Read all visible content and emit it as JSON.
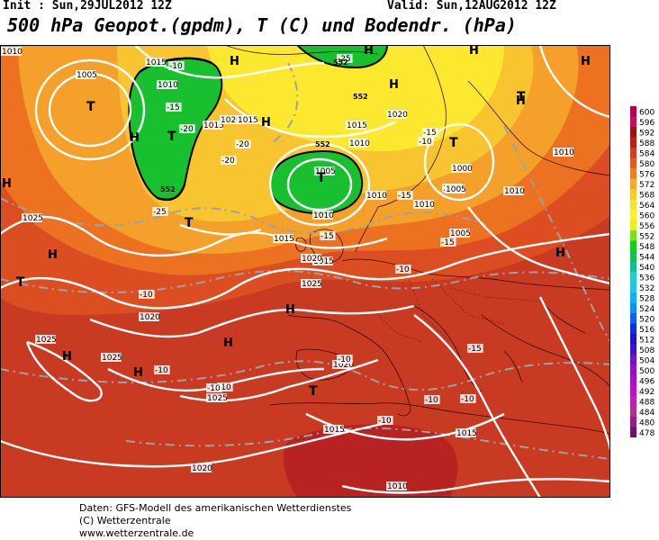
{
  "header": {
    "init": "Init : Sun,29JUL2012 12Z",
    "valid": "Valid: Sun,12AUG2012 12Z",
    "title": "500 hPa Geopot.(gpdm), T (C) und Bodendr. (hPa)"
  },
  "legend": {
    "levels": [
      {
        "value": "600",
        "color": "#b40050"
      },
      {
        "value": "596",
        "color": "#c8105a"
      },
      {
        "value": "592",
        "color": "#a01010"
      },
      {
        "value": "588",
        "color": "#bb1f1a"
      },
      {
        "value": "584",
        "color": "#d23c22"
      },
      {
        "value": "580",
        "color": "#e05a20"
      },
      {
        "value": "576",
        "color": "#ee8020"
      },
      {
        "value": "572",
        "color": "#f6a828"
      },
      {
        "value": "568",
        "color": "#f8c830"
      },
      {
        "value": "564",
        "color": "#f8e038"
      },
      {
        "value": "560",
        "color": "#fff030"
      },
      {
        "value": "556",
        "color": "#e8f020"
      },
      {
        "value": "552",
        "color": "#78e020"
      },
      {
        "value": "548",
        "color": "#10d010"
      },
      {
        "value": "544",
        "color": "#10c050"
      },
      {
        "value": "540",
        "color": "#10c090"
      },
      {
        "value": "536",
        "color": "#20d0c8"
      },
      {
        "value": "532",
        "color": "#20c8e8"
      },
      {
        "value": "528",
        "color": "#10b0f0"
      },
      {
        "value": "524",
        "color": "#1090f0"
      },
      {
        "value": "520",
        "color": "#1060f0"
      },
      {
        "value": "516",
        "color": "#1030e0"
      },
      {
        "value": "512",
        "color": "#2010d0"
      },
      {
        "value": "508",
        "color": "#4010d0"
      },
      {
        "value": "504",
        "color": "#7010d0"
      },
      {
        "value": "500",
        "color": "#9010d0"
      },
      {
        "value": "496",
        "color": "#a810c8"
      },
      {
        "value": "492",
        "color": "#c010c0"
      },
      {
        "value": "488",
        "color": "#c020b0"
      },
      {
        "value": "484",
        "color": "#b03090"
      },
      {
        "value": "480",
        "color": "#902080"
      },
      {
        "value": "478",
        "color": "#701070"
      }
    ]
  },
  "map": {
    "pressure_labels": [
      "1010",
      "1005",
      "1015",
      "1010",
      "1015",
      "1020",
      "1015",
      "1015",
      "1020",
      "1010",
      "1005",
      "1010",
      "1015",
      "1010",
      "1010",
      "1005",
      "1005",
      "1000",
      "1005",
      "1010",
      "1010",
      "1025",
      "1015",
      "1020",
      "1025",
      "1020",
      "1025",
      "1025",
      "1020",
      "1025",
      "1015",
      "1020",
      "1015",
      "1010"
    ],
    "temp_labels": [
      "-25",
      "-10",
      "-15",
      "-20",
      "-20",
      "-20",
      "-25",
      "-15",
      "-10",
      "-15",
      "-15",
      "-15",
      "-10",
      "-10",
      "-15",
      "-10",
      "-10",
      "-10",
      "-10",
      "-10",
      "-10",
      "-10"
    ],
    "geopot_labels": [
      "552",
      "552",
      "552",
      "552"
    ],
    "highs": [
      "H",
      "H",
      "H",
      "H",
      "H",
      "H",
      "H",
      "H",
      "H",
      "H",
      "H",
      "H",
      "H",
      "H",
      "H"
    ],
    "lows": [
      "T",
      "T",
      "T",
      "T",
      "T",
      "T",
      "T",
      "T"
    ]
  },
  "credits": {
    "line1": "Daten: GFS-Modell des amerikanischen Wetterdienstes",
    "line2": "(C) Wetterzentrale",
    "line3": "www.wetterzentrale.de"
  }
}
